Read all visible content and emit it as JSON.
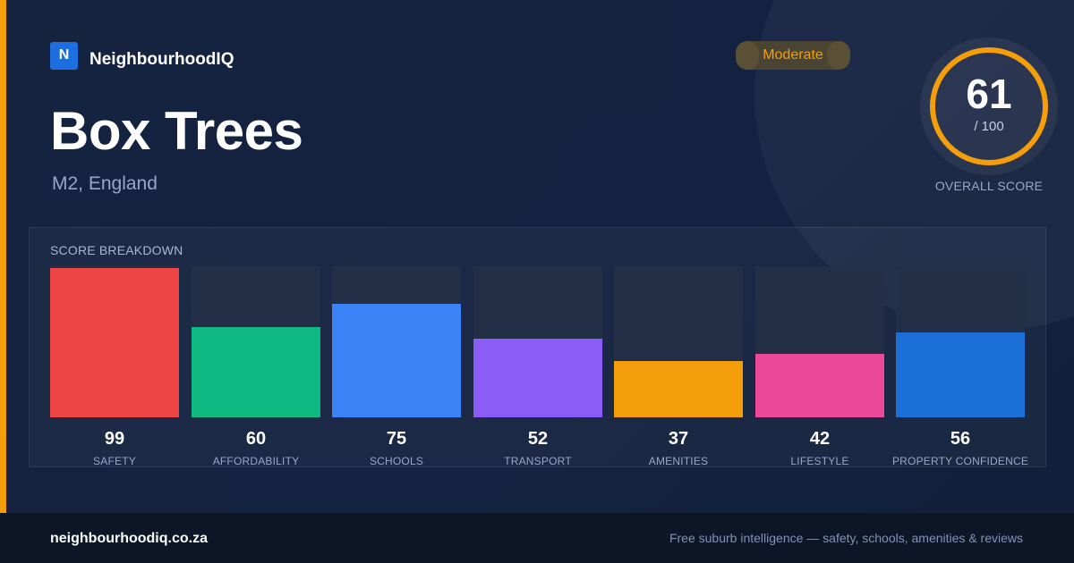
{
  "brand": {
    "logo_letter": "N",
    "name": "NeighbourhoodIQ"
  },
  "suburb": {
    "name": "Box Trees",
    "location": "M2, England"
  },
  "rating_badge": {
    "label": "Moderate",
    "color": "#f59e0b"
  },
  "overall": {
    "score": "61",
    "max_label": "/ 100",
    "label": "OVERALL SCORE",
    "score_value": 61,
    "max_value": 100,
    "ring_color": "#f59e0b"
  },
  "breakdown": {
    "title": "SCORE BREAKDOWN",
    "items": [
      {
        "label": "SAFETY",
        "value": 99,
        "color": "#ef4444"
      },
      {
        "label": "AFFORDABILITY",
        "value": 60,
        "color": "#10b981"
      },
      {
        "label": "SCHOOLS",
        "value": 75,
        "color": "#3b82f6"
      },
      {
        "label": "TRANSPORT",
        "value": 52,
        "color": "#8b5cf6"
      },
      {
        "label": "AMENITIES",
        "value": 37,
        "color": "#f59e0b"
      },
      {
        "label": "LIFESTYLE",
        "value": 42,
        "color": "#ec4899"
      },
      {
        "label": "PROPERTY CONFIDENCE",
        "value": 56,
        "color": "#1d6fd8"
      }
    ]
  },
  "footer": {
    "url": "neighbourhoodiq.co.za",
    "tagline": "Free suburb intelligence — safety, schools, amenities & reviews"
  }
}
